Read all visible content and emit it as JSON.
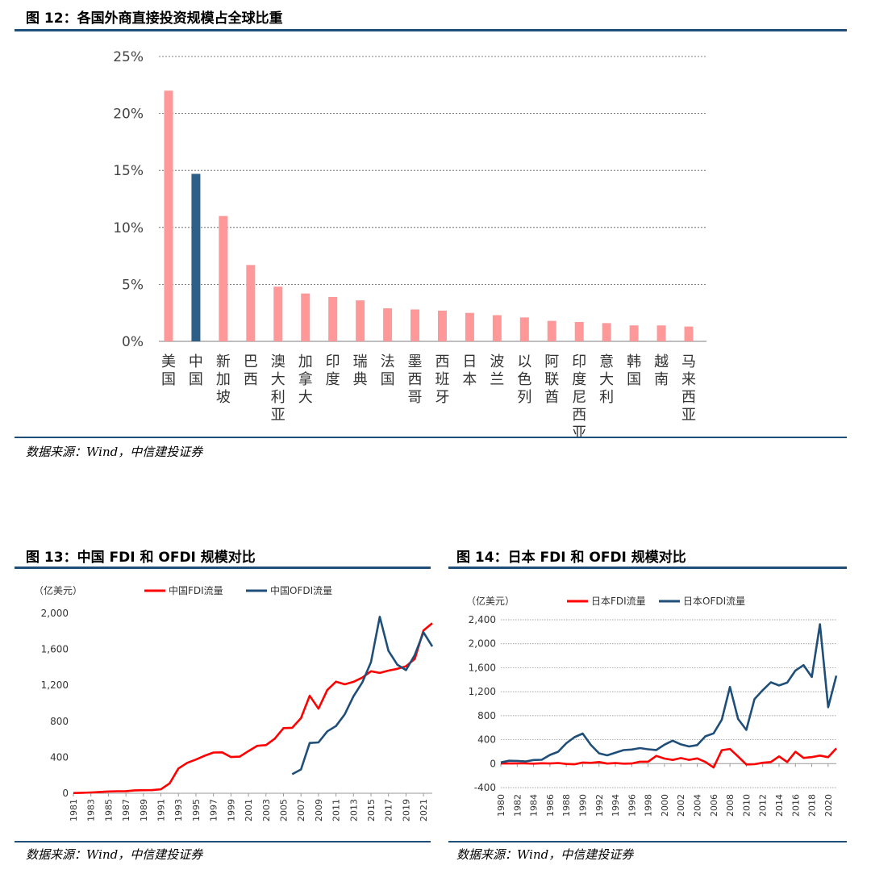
{
  "fig12": {
    "title": "图 12：各国外商直接投资规模占全球比重",
    "source": "数据来源：Wind，中信建投证券",
    "colors": {
      "default": "#ff9999",
      "highlight": "#2e5f86"
    },
    "chart_data": {
      "type": "bar",
      "categories": [
        "美国",
        "中国",
        "新加坡",
        "巴西",
        "澳大利亚",
        "加拿大",
        "印度",
        "瑞典",
        "法国",
        "墨西哥",
        "西班牙",
        "日本",
        "波兰",
        "以色列",
        "阿联酋",
        "印度尼西亚",
        "意大利",
        "韩国",
        "越南",
        "马来西亚"
      ],
      "values": [
        22.0,
        14.7,
        11.0,
        6.7,
        4.8,
        4.2,
        3.9,
        3.6,
        2.9,
        2.8,
        2.7,
        2.5,
        2.3,
        2.1,
        1.8,
        1.7,
        1.6,
        1.4,
        1.4,
        1.3
      ],
      "highlight_index": 1,
      "yticks": [
        "0%",
        "5%",
        "10%",
        "15%",
        "20%",
        "25%"
      ],
      "ylim": [
        0,
        25
      ],
      "grid": true
    }
  },
  "fig13": {
    "title": "图 13：中国 FDI 和 OFDI 规模对比",
    "source": "数据来源：Wind，中信建投证券",
    "chart_data": {
      "type": "line",
      "unit_label": "（亿美元）",
      "x": [
        1981,
        1982,
        1983,
        1984,
        1985,
        1986,
        1987,
        1988,
        1989,
        1990,
        1991,
        1992,
        1993,
        1994,
        1995,
        1996,
        1997,
        1998,
        1999,
        2000,
        2001,
        2002,
        2003,
        2004,
        2005,
        2006,
        2007,
        2008,
        2009,
        2010,
        2011,
        2012,
        2013,
        2014,
        2015,
        2016,
        2017,
        2018,
        2019,
        2020,
        2021,
        2022
      ],
      "xticks": [
        "1981",
        "1983",
        "1985",
        "1987",
        "1989",
        "1991",
        "1993",
        "1995",
        "1997",
        "1999",
        "2001",
        "2003",
        "2005",
        "2007",
        "2009",
        "2011",
        "2013",
        "2015",
        "2017",
        "2019",
        "2021"
      ],
      "yticks": [
        "0",
        "400",
        "800",
        "1,200",
        "1,600",
        "2,000"
      ],
      "ylim": [
        0,
        2000
      ],
      "legend": "top",
      "series": [
        {
          "name": "中国FDI流量",
          "color": "#ff0000",
          "values": [
            3,
            5,
            9,
            14,
            20,
            22,
            23,
            32,
            34,
            35,
            44,
            110,
            275,
            338,
            375,
            417,
            453,
            455,
            403,
            407,
            469,
            527,
            535,
            606,
            724,
            727,
            835,
            1083,
            940,
            1147,
            1240,
            1211,
            1239,
            1285,
            1356,
            1337,
            1363,
            1383,
            1412,
            1493,
            1810,
            1891
          ]
        },
        {
          "name": "中国OFDI流量",
          "color": "#1f4e79",
          "values": [
            null,
            null,
            null,
            null,
            null,
            null,
            null,
            null,
            null,
            null,
            null,
            null,
            null,
            null,
            null,
            null,
            null,
            null,
            null,
            null,
            null,
            null,
            null,
            null,
            null,
            212,
            265,
            559,
            565,
            688,
            747,
            878,
            1078,
            1231,
            1457,
            1961,
            1582,
            1430,
            1369,
            1537,
            1788,
            1631
          ]
        }
      ]
    }
  },
  "fig14": {
    "title": "图 14：日本 FDI 和 OFDI 规模对比",
    "source": "数据来源：Wind，中信建投证券",
    "chart_data": {
      "type": "line",
      "unit_label": "（亿美元）",
      "x": [
        1980,
        1981,
        1982,
        1983,
        1984,
        1985,
        1986,
        1987,
        1988,
        1989,
        1990,
        1991,
        1992,
        1993,
        1994,
        1995,
        1996,
        1997,
        1998,
        1999,
        2000,
        2001,
        2002,
        2003,
        2004,
        2005,
        2006,
        2007,
        2008,
        2009,
        2010,
        2011,
        2012,
        2013,
        2014,
        2015,
        2016,
        2017,
        2018,
        2019,
        2020,
        2021
      ],
      "xticks": [
        "1980",
        "1982",
        "1984",
        "1986",
        "1988",
        "1990",
        "1992",
        "1994",
        "1996",
        "1998",
        "2000",
        "2002",
        "2004",
        "2006",
        "2008",
        "2010",
        "2012",
        "2014",
        "2016",
        "2018",
        "2020"
      ],
      "yticks": [
        "-400",
        "0",
        "400",
        "800",
        "1,200",
        "1,600",
        "2,000",
        "2,400"
      ],
      "ylim": [
        -400,
        2400
      ],
      "legend": "top",
      "series": [
        {
          "name": "日本FDI流量",
          "color": "#ff0000",
          "values": [
            3,
            2,
            4,
            4,
            0,
            6,
            2,
            10,
            -5,
            -11,
            18,
            13,
            27,
            1,
            9,
            0,
            2,
            32,
            32,
            129,
            84,
            62,
            93,
            63,
            87,
            28,
            -65,
            224,
            245,
            119,
            -13,
            -10,
            15,
            27,
            121,
            27,
            198,
            95,
            109,
            135,
            107,
            254
          ]
        },
        {
          "name": "日本OFDI流量",
          "color": "#1f4e79",
          "values": [
            20,
            48,
            45,
            36,
            60,
            64,
            145,
            198,
            340,
            441,
            502,
            314,
            172,
            138,
            181,
            226,
            235,
            260,
            240,
            227,
            316,
            383,
            322,
            287,
            310,
            456,
            504,
            734,
            1280,
            746,
            563,
            1075,
            1225,
            1357,
            1304,
            1351,
            1553,
            1643,
            1446,
            2326,
            941,
            1467
          ]
        }
      ]
    }
  }
}
